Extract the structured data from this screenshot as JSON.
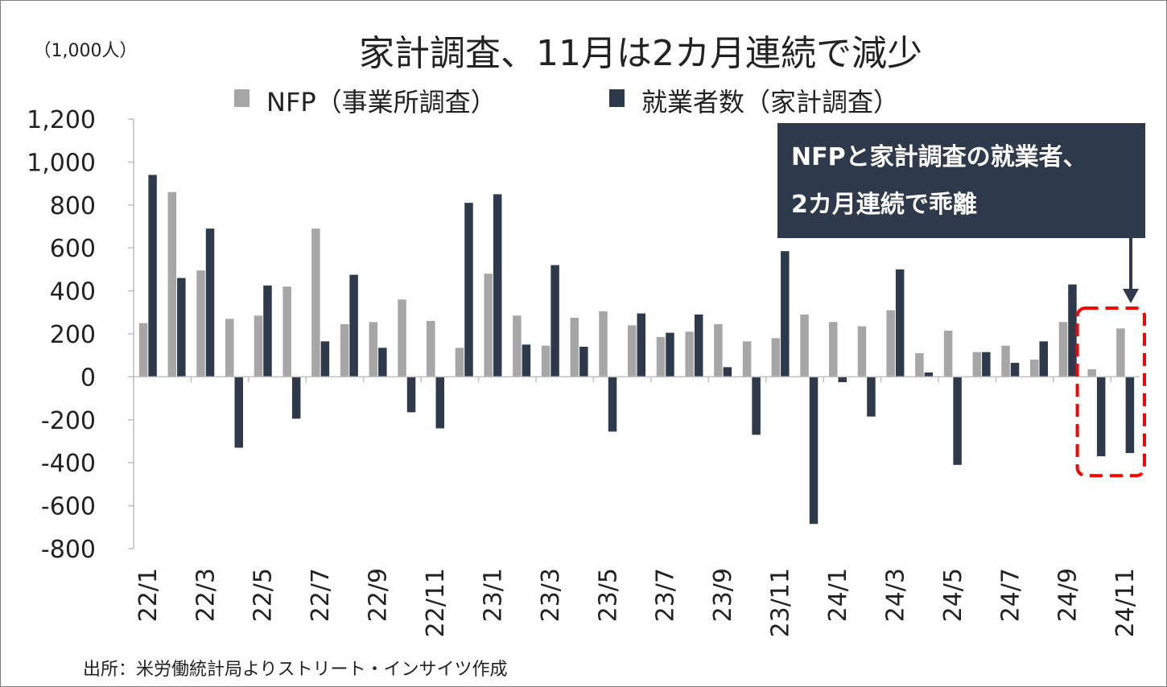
{
  "chart_data": {
    "type": "bar",
    "title": "家計調査、11月は2カ月連続で減少",
    "unit_label": "（1,000人）",
    "source": "出所：米労働統計局よりストリート・インサイツ作成",
    "annotation": {
      "line1": "NFPと家計調査の就業者、",
      "line2": "2カ月連続で乖離"
    },
    "ylim": [
      -800,
      1200
    ],
    "y_ticks": [
      1200,
      1000,
      800,
      600,
      400,
      200,
      0,
      -200,
      -400,
      -600,
      -800
    ],
    "y_tick_labels": [
      "1,200",
      "1,000",
      "800",
      "600",
      "400",
      "200",
      "0",
      "-200",
      "-400",
      "-600",
      "-800"
    ],
    "categories": [
      "22/1",
      "22/2",
      "22/3",
      "22/4",
      "22/5",
      "22/6",
      "22/7",
      "22/8",
      "22/9",
      "22/10",
      "22/11",
      "22/12",
      "23/1",
      "23/2",
      "23/3",
      "23/4",
      "23/5",
      "23/6",
      "23/7",
      "23/8",
      "23/9",
      "23/10",
      "23/11",
      "23/12",
      "24/1",
      "24/2",
      "24/3",
      "24/4",
      "24/5",
      "24/6",
      "24/7",
      "24/8",
      "24/9",
      "24/10",
      "24/11"
    ],
    "x_tick_labels": [
      "22/1",
      "22/3",
      "22/5",
      "22/7",
      "22/9",
      "22/11",
      "23/1",
      "23/3",
      "23/5",
      "23/7",
      "23/9",
      "23/11",
      "24/1",
      "24/3",
      "24/5",
      "24/7",
      "24/9",
      "24/11"
    ],
    "series": [
      {
        "name": "NFP（事業所調査）",
        "color": "#a6a6a6",
        "values": [
          250,
          860,
          495,
          270,
          285,
          420,
          690,
          245,
          255,
          360,
          260,
          135,
          480,
          285,
          145,
          275,
          305,
          240,
          185,
          210,
          245,
          165,
          180,
          290,
          255,
          235,
          310,
          110,
          215,
          115,
          145,
          80,
          255,
          35,
          225
        ]
      },
      {
        "name": "就業者数（家計調査）",
        "color": "#2e3a4c",
        "values": [
          940,
          460,
          690,
          -330,
          425,
          -195,
          165,
          475,
          135,
          -165,
          -240,
          810,
          850,
          150,
          520,
          140,
          -255,
          295,
          205,
          290,
          45,
          -270,
          585,
          -685,
          -25,
          -185,
          500,
          20,
          -410,
          115,
          65,
          165,
          430,
          -370,
          -355
        ]
      }
    ],
    "highlight_categories": [
      "24/10",
      "24/11"
    ],
    "colors": {
      "highlight_box": "#ff0000",
      "callout_bg": "#2e3a4c",
      "axis": "#bfbfbf"
    }
  }
}
